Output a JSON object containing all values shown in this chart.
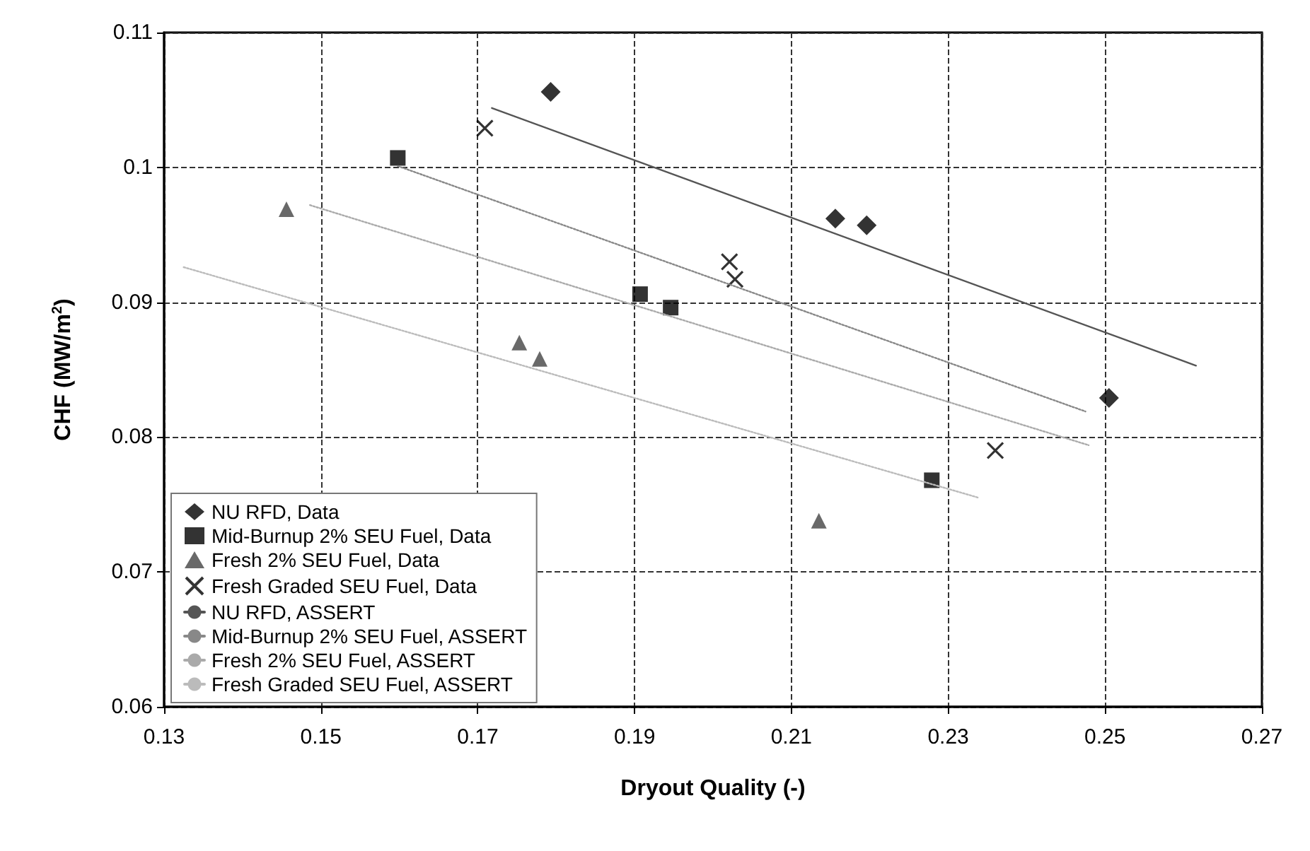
{
  "chart_data": {
    "type": "scatter",
    "xlabel": "Dryout Quality (-)",
    "ylabel": "CHF (MW/m$^{2}$)",
    "xlim": [
      0.13,
      0.27
    ],
    "xticks": [
      0.13,
      0.15,
      0.17,
      0.19,
      0.21,
      0.23,
      0.25,
      0.27
    ],
    "ylim": [
      0.06,
      0.11
    ],
    "yticks": [
      0.06,
      0.07,
      0.08,
      0.09,
      0.1,
      0.11
    ],
    "grid": true,
    "legend": "bottom left",
    "series": [
      {
        "name": "NU RFD, Data",
        "marker": "diamond",
        "color": "#000000",
        "x": [
          0.1793,
          0.2156,
          0.2196,
          0.2505
        ],
        "values": [
          0.1056,
          0.0962,
          0.0957,
          0.0829
        ]
      },
      {
        "name": "Mid-Burnup 2% SEU Fuel, Data",
        "marker": "square",
        "color": "#000000",
        "x": [
          0.1598,
          0.1907,
          0.1946,
          0.2279
        ],
        "values": [
          0.1007,
          0.0906,
          0.0896,
          0.0768
        ]
      },
      {
        "name": "Fresh 2% SEU Fuel, Data",
        "marker": "triangle",
        "color": "#444444",
        "x": [
          0.1456,
          0.1753,
          0.1779,
          0.2135
        ],
        "values": [
          0.0969,
          0.087,
          0.0858,
          0.0738
        ]
      },
      {
        "name": "Fresh Graded SEU Fuel, Data",
        "marker": "cross",
        "color": "#000000",
        "x": [
          0.1709,
          0.2021,
          0.2028,
          0.236
        ],
        "values": [
          0.1029,
          0.093,
          0.0917,
          0.079
        ]
      },
      {
        "name": "NU RFD, ASSERT",
        "type": "line",
        "line_style": "solid",
        "color": "#555555",
        "x": [
          0.1718,
          0.2616
        ],
        "values": [
          0.1044,
          0.0853
        ]
      },
      {
        "name": "Mid-Burnup 2% SEU Fuel, ASSERT",
        "type": "line",
        "line_style": "dotted",
        "color": "#888888",
        "x": [
          0.1598,
          0.2475
        ],
        "values": [
          0.1001,
          0.0819
        ]
      },
      {
        "name": "Fresh 2% SEU Fuel, ASSERT",
        "type": "line",
        "line_style": "dotted",
        "color": "#aaaaaa",
        "x": [
          0.1486,
          0.2479
        ],
        "values": [
          0.0972,
          0.0794
        ]
      },
      {
        "name": "Fresh Graded SEU Fuel, ASSERT",
        "type": "line",
        "line_style": "dotted",
        "color": "#bbbbbb",
        "x": [
          0.1325,
          0.2339
        ],
        "values": [
          0.0926,
          0.0755
        ]
      }
    ]
  }
}
